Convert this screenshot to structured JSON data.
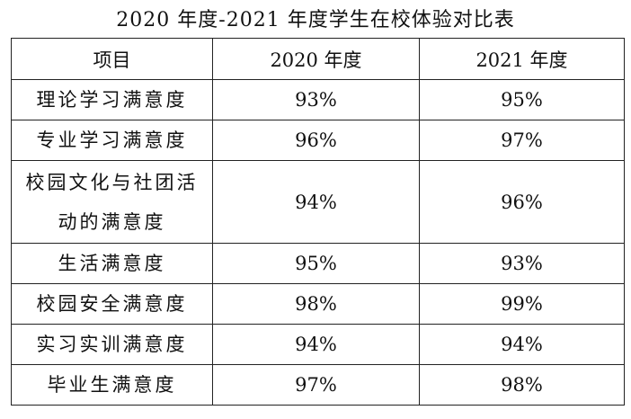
{
  "title": "2020 年度-2021 年度学生在校体验对比表",
  "table": {
    "headers": [
      "项目",
      "2020 年度",
      "2021 年度"
    ],
    "rows": [
      {
        "item": "理论学习满意度",
        "y2020": "93%",
        "y2021": "95%"
      },
      {
        "item": "专业学习满意度",
        "y2020": "96%",
        "y2021": "97%"
      },
      {
        "item": "校园文化与社团活动的满意度",
        "y2020": "94%",
        "y2021": "96%"
      },
      {
        "item": "生活满意度",
        "y2020": "95%",
        "y2021": "93%"
      },
      {
        "item": "校园安全满意度",
        "y2020": "98%",
        "y2021": "99%"
      },
      {
        "item": "实习实训满意度",
        "y2020": "94%",
        "y2021": "94%"
      },
      {
        "item": "毕业生满意度",
        "y2020": "97%",
        "y2021": "98%"
      }
    ]
  }
}
